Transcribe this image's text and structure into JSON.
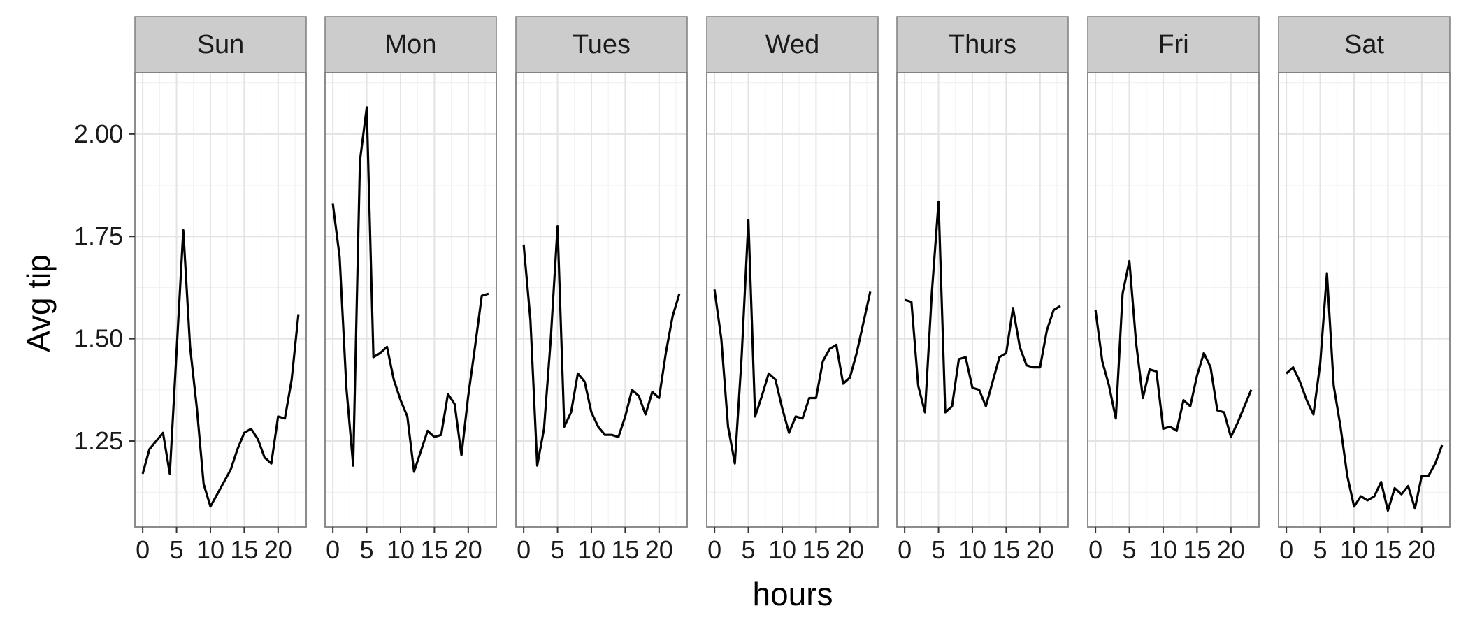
{
  "chart_data": {
    "type": "line",
    "layout": "facet",
    "xlabel": "hours",
    "ylabel": "Avg tip",
    "x": [
      0,
      1,
      2,
      3,
      4,
      5,
      6,
      7,
      8,
      9,
      10,
      11,
      12,
      13,
      14,
      15,
      16,
      17,
      18,
      19,
      20,
      21,
      22,
      23
    ],
    "xticks": [
      0,
      5,
      10,
      15,
      20
    ],
    "yticks": [
      1.25,
      1.5,
      1.75,
      2.0
    ],
    "ytick_labels": [
      "1.25",
      "1.50",
      "1.75",
      "2.00"
    ],
    "xlim": [
      -1.15,
      24.15
    ],
    "ylim": [
      1.04,
      2.15
    ],
    "grid": true,
    "line_color": "#000000",
    "panels": [
      {
        "name": "Sun",
        "values": [
          1.17,
          1.23,
          1.25,
          1.27,
          1.17,
          1.47,
          1.765,
          1.48,
          1.33,
          1.145,
          1.09,
          1.12,
          1.15,
          1.18,
          1.23,
          1.27,
          1.28,
          1.255,
          1.21,
          1.195,
          1.31,
          1.305,
          1.4,
          1.56
        ]
      },
      {
        "name": "Mon",
        "values": [
          1.83,
          1.7,
          1.38,
          1.19,
          1.935,
          2.065,
          1.455,
          1.465,
          1.48,
          1.4,
          1.35,
          1.31,
          1.175,
          1.225,
          1.275,
          1.26,
          1.265,
          1.365,
          1.34,
          1.215,
          1.36,
          1.48,
          1.605,
          1.61
        ]
      },
      {
        "name": "Tues",
        "values": [
          1.73,
          1.545,
          1.19,
          1.28,
          1.5,
          1.775,
          1.285,
          1.32,
          1.415,
          1.395,
          1.32,
          1.285,
          1.265,
          1.265,
          1.26,
          1.31,
          1.375,
          1.36,
          1.315,
          1.37,
          1.355,
          1.465,
          1.555,
          1.61
        ]
      },
      {
        "name": "Wed",
        "values": [
          1.62,
          1.5,
          1.285,
          1.195,
          1.455,
          1.79,
          1.31,
          1.36,
          1.415,
          1.4,
          1.33,
          1.27,
          1.31,
          1.305,
          1.355,
          1.355,
          1.445,
          1.475,
          1.485,
          1.39,
          1.405,
          1.465,
          1.54,
          1.615
        ]
      },
      {
        "name": "Thurs",
        "values": [
          1.595,
          1.59,
          1.385,
          1.32,
          1.61,
          1.835,
          1.32,
          1.335,
          1.45,
          1.455,
          1.38,
          1.375,
          1.335,
          1.395,
          1.455,
          1.465,
          1.575,
          1.48,
          1.435,
          1.43,
          1.43,
          1.52,
          1.57,
          1.58
        ]
      },
      {
        "name": "Fri",
        "values": [
          1.57,
          1.445,
          1.385,
          1.305,
          1.61,
          1.69,
          1.49,
          1.355,
          1.425,
          1.42,
          1.28,
          1.285,
          1.275,
          1.35,
          1.335,
          1.41,
          1.465,
          1.43,
          1.325,
          1.32,
          1.26,
          1.295,
          1.335,
          1.375
        ]
      },
      {
        "name": "Sat",
        "values": [
          1.415,
          1.43,
          1.395,
          1.35,
          1.315,
          1.44,
          1.66,
          1.385,
          1.285,
          1.165,
          1.09,
          1.115,
          1.105,
          1.115,
          1.15,
          1.08,
          1.135,
          1.12,
          1.14,
          1.085,
          1.165,
          1.165,
          1.195,
          1.24
        ]
      }
    ]
  }
}
